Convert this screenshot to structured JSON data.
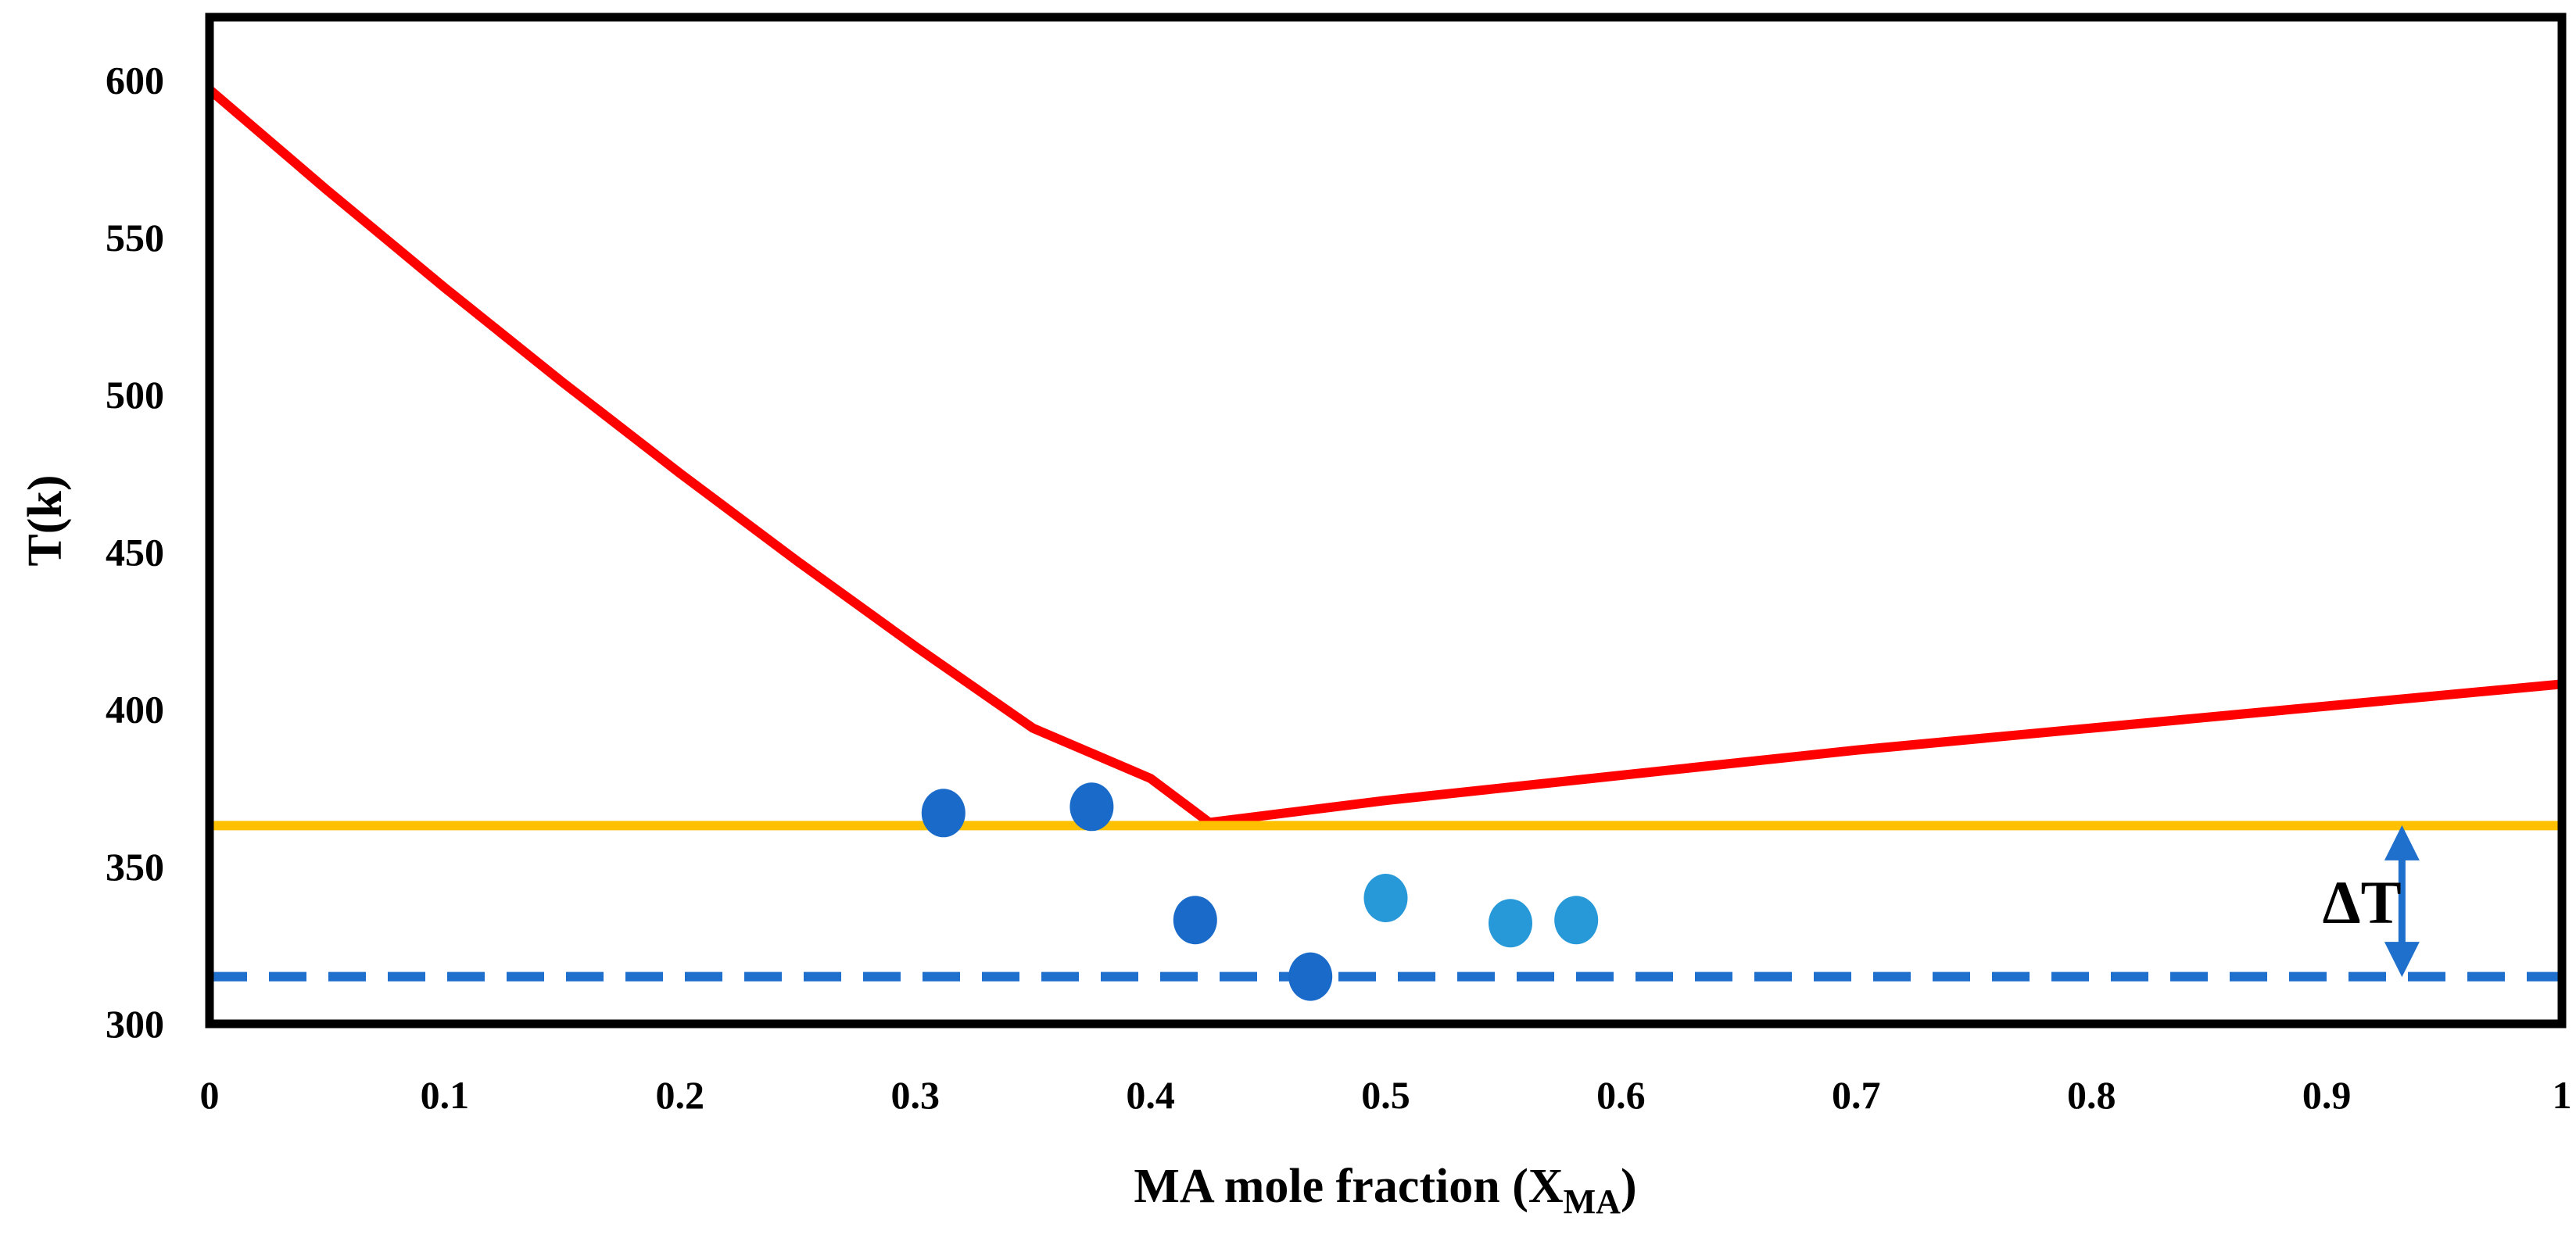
{
  "chart_data": {
    "type": "line",
    "title": "",
    "xlabel": "MA mole fraction (X",
    "xlabel_subscript": "MA",
    "xlabel_suffix": ")",
    "ylabel": "T(k)",
    "xlim": [
      0,
      1
    ],
    "ylim": [
      300,
      620
    ],
    "x_ticks": [
      "0",
      "0.1",
      "0.2",
      "0.3",
      "0.4",
      "0.5",
      "0.6",
      "0.7",
      "0.8",
      "0.9",
      "1"
    ],
    "y_ticks": [
      "300",
      "350",
      "400",
      "450",
      "500",
      "550",
      "600"
    ],
    "grid": false,
    "legend": "none",
    "series": [
      {
        "kind": "line",
        "color": "#ff0000",
        "style": "solid",
        "points": [
          [
            0,
            597
          ],
          [
            0.05,
            565
          ],
          [
            0.1,
            534
          ],
          [
            0.15,
            504
          ],
          [
            0.2,
            475
          ],
          [
            0.25,
            447
          ],
          [
            0.3,
            420
          ],
          [
            0.35,
            394
          ],
          [
            0.4,
            378
          ],
          [
            0.425,
            364
          ]
        ]
      },
      {
        "kind": "line",
        "color": "#ff0000",
        "style": "solid",
        "points": [
          [
            0.425,
            364
          ],
          [
            0.5,
            371
          ],
          [
            0.6,
            379
          ],
          [
            0.7,
            387
          ],
          [
            0.8,
            394
          ],
          [
            0.9,
            401
          ],
          [
            1.0,
            408
          ]
        ]
      },
      {
        "kind": "line",
        "color": "#ffc000",
        "style": "solid",
        "points": [
          [
            0,
            363
          ],
          [
            1,
            363
          ]
        ]
      },
      {
        "kind": "line",
        "color": "#1f6fcc",
        "style": "dashed",
        "points": [
          [
            0,
            315
          ],
          [
            1,
            315
          ]
        ]
      },
      {
        "kind": "scatter",
        "color": "#1a6bc9",
        "points": [
          [
            0.312,
            367
          ],
          [
            0.375,
            369
          ],
          [
            0.419,
            333
          ],
          [
            0.468,
            315
          ]
        ]
      },
      {
        "kind": "scatter",
        "color": "#2799d9",
        "points": [
          [
            0.5,
            340
          ],
          [
            0.553,
            332
          ],
          [
            0.581,
            333
          ]
        ]
      }
    ],
    "annotations": [
      {
        "text": "ΔT",
        "x": 0.905,
        "y": 339,
        "arrow_from": 363,
        "arrow_to": 315,
        "arrow_x": 0.932,
        "color": "#1f6fcc"
      }
    ]
  }
}
